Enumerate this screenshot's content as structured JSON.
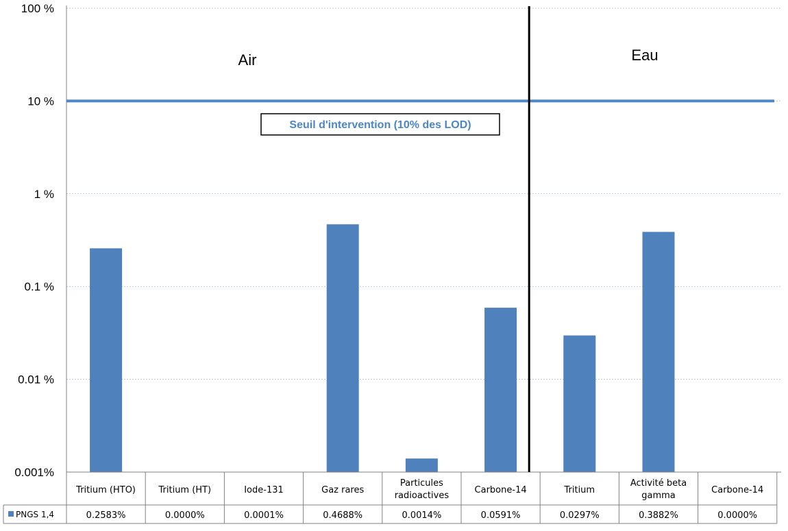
{
  "chart_data": {
    "type": "bar",
    "scale": "log",
    "ylim": [
      0.001,
      100
    ],
    "ytick_labels": [
      "100 %",
      "10 %",
      "1 %",
      "0.1 %",
      "0.01 %",
      "0.001%"
    ],
    "ytick_values": [
      100,
      10,
      1,
      0.1,
      0.01,
      0.001
    ],
    "grid": true,
    "categories": [
      "Tritium (HTO)",
      "Tritium (HT)",
      "Iode-131",
      "Gaz rares",
      "Particules radioactives",
      "Carbone-14",
      "Tritium",
      "Activité beta gamma",
      "Carbone-14"
    ],
    "series": [
      {
        "name": "PNGS 1,4",
        "color": "#4f81bd",
        "values": [
          0.2583,
          0.0,
          0.0001,
          0.4688,
          0.0014,
          0.0591,
          0.0297,
          0.3882,
          0.0
        ],
        "value_labels": [
          "0.2583%",
          "0.0000%",
          "0.0001%",
          "0.4688%",
          "0.0014%",
          "0.0591%",
          "0.0297%",
          "0.3882%",
          "0.0000%"
        ]
      }
    ],
    "regions": [
      {
        "label": "Air",
        "from_category": 0,
        "to_category": 5
      },
      {
        "label": "Eau",
        "from_category": 6,
        "to_category": 8
      }
    ],
    "threshold": {
      "value": 10,
      "label": "Seuil d'intervention (10% des LOD)",
      "color": "#4a86c8"
    },
    "legend": "bottom-left, as data table"
  }
}
